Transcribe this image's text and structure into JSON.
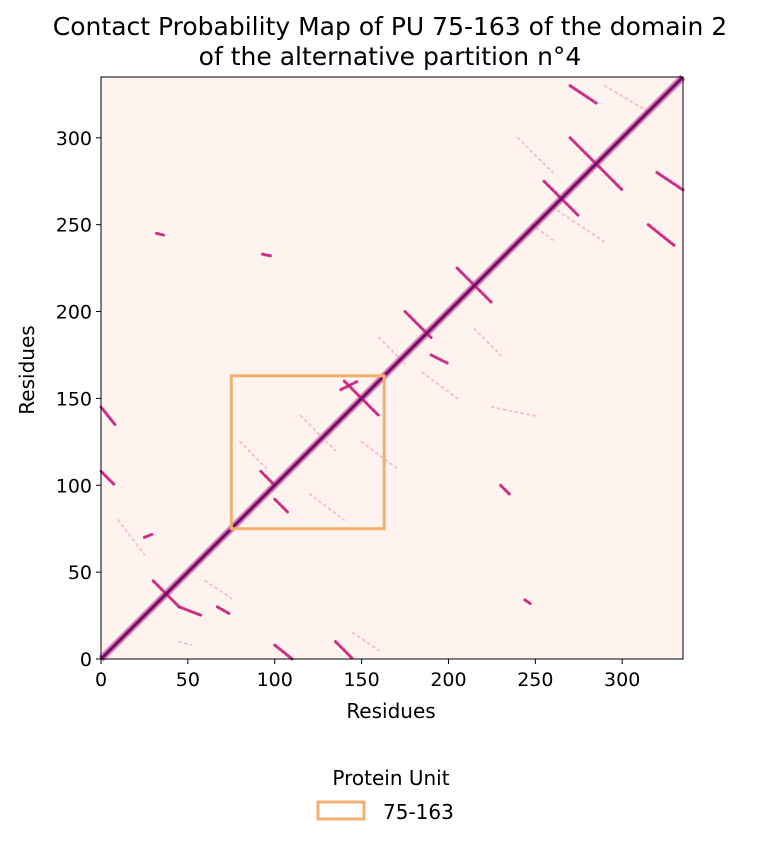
{
  "chart_data": {
    "type": "heatmap",
    "title_line1": "Contact Probability Map of PU 75-163 of the domain 2",
    "title_line2": "of the alternative partition n°4",
    "xlabel": "Residues",
    "ylabel": "Residues",
    "xlim": [
      0,
      335
    ],
    "ylim": [
      0,
      335
    ],
    "xticks": [
      0,
      50,
      100,
      150,
      200,
      250,
      300
    ],
    "yticks": [
      0,
      50,
      100,
      150,
      200,
      250,
      300
    ],
    "colors": {
      "background": "#fff3f0",
      "diagonal": "#6a0f6e",
      "strong_contact": "#c81a7a",
      "weak_contact": "#f2b5c3",
      "unit_box": "#f0b070"
    },
    "protein_unit": {
      "label": "75-163",
      "start": 75,
      "end": 163
    },
    "contacts": [
      {
        "x": [
          100,
          108
        ],
        "y": [
          92,
          84
        ],
        "strength": "strong"
      },
      {
        "x": [
          92,
          100
        ],
        "y": [
          108,
          100
        ],
        "strength": "strong"
      },
      {
        "x": [
          140,
          160
        ],
        "y": [
          160,
          140
        ],
        "strength": "strong"
      },
      {
        "x": [
          138,
          148
        ],
        "y": [
          155,
          160
        ],
        "strength": "strong"
      },
      {
        "x": [
          30,
          45
        ],
        "y": [
          45,
          30
        ],
        "strength": "strong"
      },
      {
        "x": [
          45,
          58
        ],
        "y": [
          30,
          25
        ],
        "strength": "strong"
      },
      {
        "x": [
          25,
          30
        ],
        "y": [
          70,
          72
        ],
        "strength": "strong"
      },
      {
        "x": [
          270,
          300
        ],
        "y": [
          300,
          270
        ],
        "strength": "strong"
      },
      {
        "x": [
          255,
          275
        ],
        "y": [
          275,
          255
        ],
        "strength": "strong"
      },
      {
        "x": [
          320,
          335
        ],
        "y": [
          280,
          270
        ],
        "strength": "strong"
      },
      {
        "x": [
          270,
          285
        ],
        "y": [
          330,
          320
        ],
        "strength": "strong"
      },
      {
        "x": [
          315,
          330
        ],
        "y": [
          250,
          238
        ],
        "strength": "strong"
      },
      {
        "x": [
          248,
          262
        ],
        "y": [
          250,
          240
        ],
        "strength": "weak"
      },
      {
        "x": [
          175,
          190
        ],
        "y": [
          200,
          185
        ],
        "strength": "strong"
      },
      {
        "x": [
          190,
          200
        ],
        "y": [
          175,
          170
        ],
        "strength": "strong"
      },
      {
        "x": [
          205,
          225
        ],
        "y": [
          225,
          205
        ],
        "strength": "strong"
      },
      {
        "x": [
          135,
          145
        ],
        "y": [
          10,
          0
        ],
        "strength": "strong"
      },
      {
        "x": [
          100,
          110
        ],
        "y": [
          8,
          0
        ],
        "strength": "strong"
      },
      {
        "x": [
          0,
          8
        ],
        "y": [
          145,
          135
        ],
        "strength": "strong"
      },
      {
        "x": [
          0,
          8
        ],
        "y": [
          108,
          100
        ],
        "strength": "strong"
      },
      {
        "x": [
          230,
          235
        ],
        "y": [
          100,
          95
        ],
        "strength": "strong"
      },
      {
        "x": [
          93,
          98
        ],
        "y": [
          233,
          232
        ],
        "strength": "strong"
      },
      {
        "x": [
          32,
          36
        ],
        "y": [
          245,
          244
        ],
        "strength": "strong"
      },
      {
        "x": [
          244,
          247
        ],
        "y": [
          34,
          32
        ],
        "strength": "strong"
      },
      {
        "x": [
          67,
          74
        ],
        "y": [
          30,
          26
        ],
        "strength": "strong"
      },
      {
        "x": [
          45,
          52
        ],
        "y": [
          10,
          8
        ],
        "strength": "weak"
      },
      {
        "x": [
          115,
          135
        ],
        "y": [
          140,
          120
        ],
        "strength": "weak"
      },
      {
        "x": [
          80,
          95
        ],
        "y": [
          125,
          110
        ],
        "strength": "weak"
      },
      {
        "x": [
          120,
          140
        ],
        "y": [
          95,
          80
        ],
        "strength": "weak"
      },
      {
        "x": [
          150,
          170
        ],
        "y": [
          125,
          110
        ],
        "strength": "weak"
      },
      {
        "x": [
          160,
          175
        ],
        "y": [
          185,
          170
        ],
        "strength": "weak"
      },
      {
        "x": [
          185,
          205
        ],
        "y": [
          165,
          150
        ],
        "strength": "weak"
      },
      {
        "x": [
          215,
          230
        ],
        "y": [
          190,
          175
        ],
        "strength": "weak"
      },
      {
        "x": [
          225,
          250
        ],
        "y": [
          145,
          140
        ],
        "strength": "weak"
      },
      {
        "x": [
          260,
          290
        ],
        "y": [
          260,
          240
        ],
        "strength": "weak"
      },
      {
        "x": [
          240,
          260
        ],
        "y": [
          300,
          280
        ],
        "strength": "weak"
      },
      {
        "x": [
          290,
          315
        ],
        "y": [
          330,
          315
        ],
        "strength": "weak"
      },
      {
        "x": [
          10,
          25
        ],
        "y": [
          80,
          60
        ],
        "strength": "weak"
      },
      {
        "x": [
          60,
          75
        ],
        "y": [
          45,
          35
        ],
        "strength": "weak"
      },
      {
        "x": [
          145,
          160
        ],
        "y": [
          15,
          5
        ],
        "strength": "weak"
      }
    ]
  },
  "legend": {
    "title": "Protein Unit",
    "items": [
      {
        "label": "75-163",
        "color": "#f0b070"
      }
    ]
  }
}
